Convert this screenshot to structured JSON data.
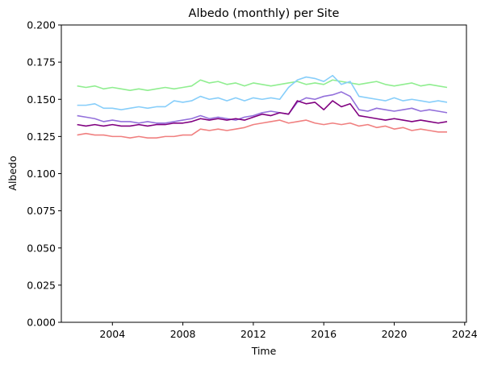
{
  "chart_data": {
    "type": "line",
    "title": "Albedo (monthly) per Site",
    "xlabel": "Time",
    "ylabel": "Albedo",
    "xlim": [
      2001.1,
      2024.1
    ],
    "ylim": [
      0.0,
      0.2
    ],
    "x_ticks": [
      2004,
      2008,
      2012,
      2016,
      2020,
      2024
    ],
    "x_tick_labels": [
      "2004",
      "2008",
      "2012",
      "2016",
      "2020",
      "2024"
    ],
    "y_ticks": [
      0.0,
      0.025,
      0.05,
      0.075,
      0.1,
      0.125,
      0.15,
      0.175,
      0.2
    ],
    "y_tick_labels": [
      "0.000",
      "0.025",
      "0.050",
      "0.075",
      "0.100",
      "0.125",
      "0.150",
      "0.175",
      "0.200"
    ],
    "grid": false,
    "legend": "none",
    "series": [
      {
        "color": "#90ee90",
        "x": [
          2002.0,
          2002.5,
          2003.0,
          2003.5,
          2004.0,
          2004.5,
          2005.0,
          2005.5,
          2006.0,
          2006.5,
          2007.0,
          2007.5,
          2008.0,
          2008.5,
          2009.0,
          2009.5,
          2010.0,
          2010.5,
          2011.0,
          2011.5,
          2012.0,
          2012.5,
          2013.0,
          2013.5,
          2014.0,
          2014.5,
          2015.0,
          2015.5,
          2016.0,
          2016.5,
          2017.0,
          2017.5,
          2018.0,
          2018.5,
          2019.0,
          2019.5,
          2020.0,
          2020.5,
          2021.0,
          2021.5,
          2022.0,
          2022.5,
          2023.0
        ],
        "y": [
          0.159,
          0.158,
          0.159,
          0.157,
          0.158,
          0.157,
          0.156,
          0.157,
          0.156,
          0.157,
          0.158,
          0.157,
          0.158,
          0.159,
          0.163,
          0.161,
          0.162,
          0.16,
          0.161,
          0.159,
          0.161,
          0.16,
          0.159,
          0.16,
          0.161,
          0.162,
          0.16,
          0.161,
          0.16,
          0.163,
          0.162,
          0.161,
          0.16,
          0.161,
          0.162,
          0.16,
          0.159,
          0.16,
          0.161,
          0.159,
          0.16,
          0.159,
          0.158
        ]
      },
      {
        "color": "#87cefa",
        "x": [
          2002.0,
          2002.5,
          2003.0,
          2003.5,
          2004.0,
          2004.5,
          2005.0,
          2005.5,
          2006.0,
          2006.5,
          2007.0,
          2007.5,
          2008.0,
          2008.5,
          2009.0,
          2009.5,
          2010.0,
          2010.5,
          2011.0,
          2011.5,
          2012.0,
          2012.5,
          2013.0,
          2013.5,
          2014.0,
          2014.5,
          2015.0,
          2015.5,
          2016.0,
          2016.5,
          2017.0,
          2017.5,
          2018.0,
          2018.5,
          2019.0,
          2019.5,
          2020.0,
          2020.5,
          2021.0,
          2021.5,
          2022.0,
          2022.5,
          2023.0
        ],
        "y": [
          0.146,
          0.146,
          0.147,
          0.144,
          0.144,
          0.143,
          0.144,
          0.145,
          0.144,
          0.145,
          0.145,
          0.149,
          0.148,
          0.149,
          0.152,
          0.15,
          0.151,
          0.149,
          0.151,
          0.149,
          0.151,
          0.15,
          0.151,
          0.15,
          0.158,
          0.163,
          0.165,
          0.164,
          0.162,
          0.166,
          0.16,
          0.162,
          0.152,
          0.151,
          0.15,
          0.149,
          0.151,
          0.149,
          0.15,
          0.149,
          0.148,
          0.149,
          0.148
        ]
      },
      {
        "color": "#9370db",
        "x": [
          2002.0,
          2002.5,
          2003.0,
          2003.5,
          2004.0,
          2004.5,
          2005.0,
          2005.5,
          2006.0,
          2006.5,
          2007.0,
          2007.5,
          2008.0,
          2008.5,
          2009.0,
          2009.5,
          2010.0,
          2010.5,
          2011.0,
          2011.5,
          2012.0,
          2012.5,
          2013.0,
          2013.5,
          2014.0,
          2014.5,
          2015.0,
          2015.5,
          2016.0,
          2016.5,
          2017.0,
          2017.5,
          2018.0,
          2018.5,
          2019.0,
          2019.5,
          2020.0,
          2020.5,
          2021.0,
          2021.5,
          2022.0,
          2022.5,
          2023.0
        ],
        "y": [
          0.139,
          0.138,
          0.137,
          0.135,
          0.136,
          0.135,
          0.135,
          0.134,
          0.135,
          0.134,
          0.134,
          0.135,
          0.136,
          0.137,
          0.139,
          0.137,
          0.138,
          0.137,
          0.136,
          0.138,
          0.139,
          0.141,
          0.142,
          0.141,
          0.14,
          0.148,
          0.151,
          0.15,
          0.152,
          0.153,
          0.155,
          0.152,
          0.143,
          0.142,
          0.144,
          0.143,
          0.142,
          0.143,
          0.144,
          0.142,
          0.143,
          0.142,
          0.141
        ]
      },
      {
        "color": "#800080",
        "x": [
          2002.0,
          2002.5,
          2003.0,
          2003.5,
          2004.0,
          2004.5,
          2005.0,
          2005.5,
          2006.0,
          2006.5,
          2007.0,
          2007.5,
          2008.0,
          2008.5,
          2009.0,
          2009.5,
          2010.0,
          2010.5,
          2011.0,
          2011.5,
          2012.0,
          2012.5,
          2013.0,
          2013.5,
          2014.0,
          2014.5,
          2015.0,
          2015.5,
          2016.0,
          2016.5,
          2017.0,
          2017.5,
          2018.0,
          2018.5,
          2019.0,
          2019.5,
          2020.0,
          2020.5,
          2021.0,
          2021.5,
          2022.0,
          2022.5,
          2023.0
        ],
        "y": [
          0.133,
          0.132,
          0.133,
          0.132,
          0.133,
          0.132,
          0.132,
          0.133,
          0.132,
          0.133,
          0.133,
          0.134,
          0.134,
          0.135,
          0.137,
          0.136,
          0.137,
          0.136,
          0.137,
          0.136,
          0.138,
          0.14,
          0.139,
          0.141,
          0.14,
          0.149,
          0.147,
          0.148,
          0.143,
          0.149,
          0.145,
          0.147,
          0.139,
          0.138,
          0.137,
          0.136,
          0.137,
          0.136,
          0.135,
          0.136,
          0.135,
          0.134,
          0.135
        ]
      },
      {
        "color": "#f08080",
        "x": [
          2002.0,
          2002.5,
          2003.0,
          2003.5,
          2004.0,
          2004.5,
          2005.0,
          2005.5,
          2006.0,
          2006.5,
          2007.0,
          2007.5,
          2008.0,
          2008.5,
          2009.0,
          2009.5,
          2010.0,
          2010.5,
          2011.0,
          2011.5,
          2012.0,
          2012.5,
          2013.0,
          2013.5,
          2014.0,
          2014.5,
          2015.0,
          2015.5,
          2016.0,
          2016.5,
          2017.0,
          2017.5,
          2018.0,
          2018.5,
          2019.0,
          2019.5,
          2020.0,
          2020.5,
          2021.0,
          2021.5,
          2022.0,
          2022.5,
          2023.0
        ],
        "y": [
          0.126,
          0.127,
          0.126,
          0.126,
          0.125,
          0.125,
          0.124,
          0.125,
          0.124,
          0.124,
          0.125,
          0.125,
          0.126,
          0.126,
          0.13,
          0.129,
          0.13,
          0.129,
          0.13,
          0.131,
          0.133,
          0.134,
          0.135,
          0.136,
          0.134,
          0.135,
          0.136,
          0.134,
          0.133,
          0.134,
          0.133,
          0.134,
          0.132,
          0.133,
          0.131,
          0.132,
          0.13,
          0.131,
          0.129,
          0.13,
          0.129,
          0.128,
          0.128
        ]
      }
    ]
  }
}
